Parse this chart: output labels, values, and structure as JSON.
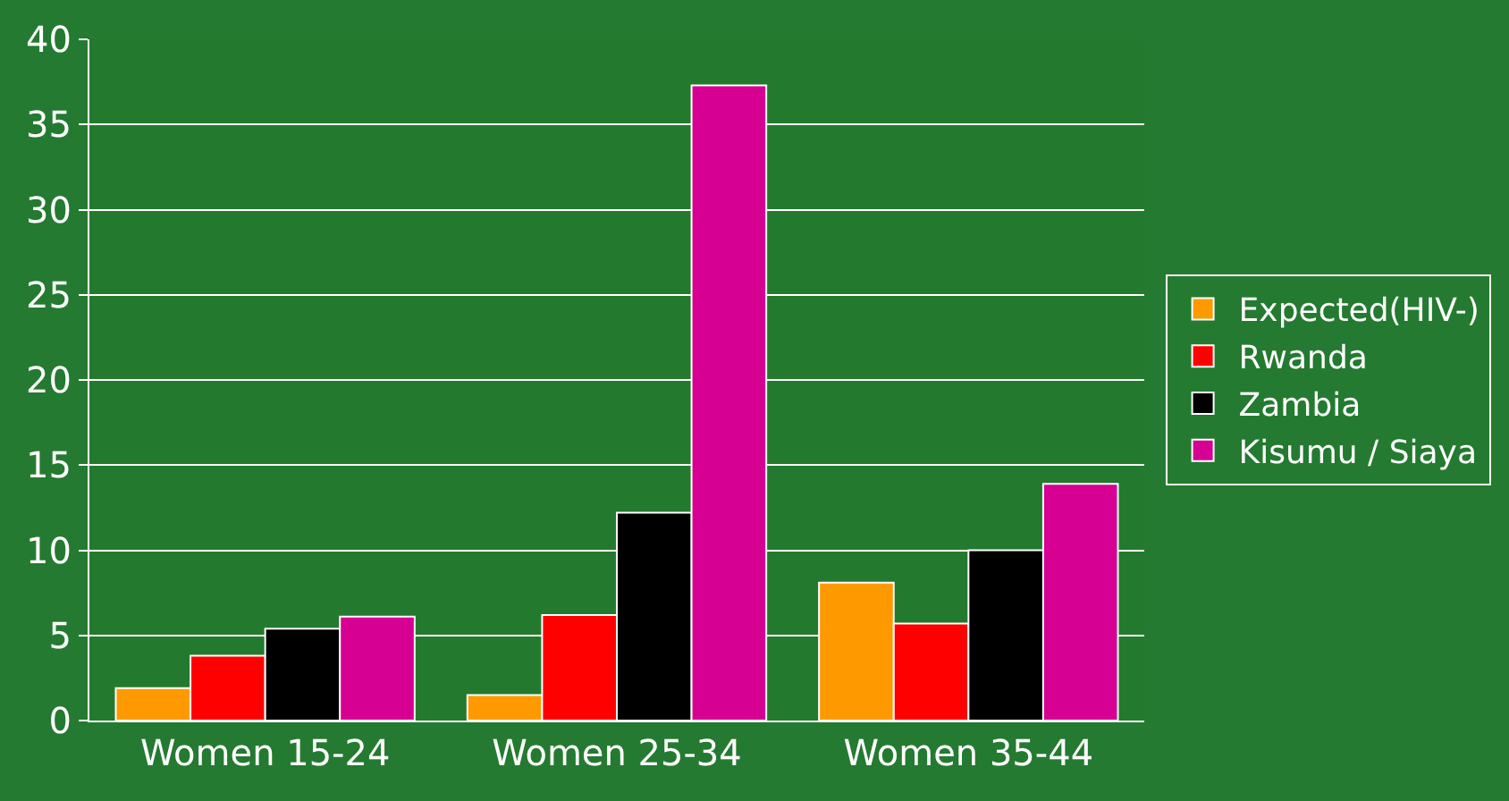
{
  "chart_data": {
    "type": "bar",
    "categories": [
      "Women 15-24",
      "Women 25-34",
      "Women 35-44"
    ],
    "series": [
      {
        "name": "Expected(HIV-)",
        "color": "#ff9900",
        "values": [
          1.9,
          1.5,
          8.1
        ]
      },
      {
        "name": "Rwanda",
        "color": "#ff0000",
        "values": [
          3.8,
          6.2,
          5.7
        ]
      },
      {
        "name": "Zambia",
        "color": "#000000",
        "values": [
          5.4,
          12.2,
          10.0
        ]
      },
      {
        "name": "Kisumu / Siaya",
        "color": "#d60093",
        "values": [
          6.1,
          37.3,
          13.9
        ]
      }
    ],
    "ylim": [
      0,
      40
    ],
    "yticks": [
      0,
      5,
      10,
      15,
      20,
      25,
      30,
      35,
      40
    ],
    "grid": "y",
    "legend": "right"
  }
}
